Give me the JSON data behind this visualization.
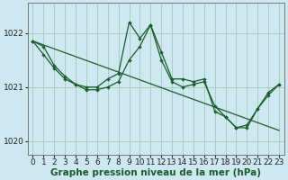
{
  "background_color": "#cde8f0",
  "grid_color": "#aacfba",
  "line_color": "#1a5c2a",
  "xlabel": "Graphe pression niveau de la mer (hPa)",
  "xlabel_fontsize": 7.5,
  "tick_fontsize": 6.5,
  "ylim": [
    1019.75,
    1022.55
  ],
  "yticks": [
    1020,
    1021,
    1022
  ],
  "xlim": [
    -0.5,
    23.5
  ],
  "xticks": [
    0,
    1,
    2,
    3,
    4,
    5,
    6,
    7,
    8,
    9,
    10,
    11,
    12,
    13,
    14,
    15,
    16,
    17,
    18,
    19,
    20,
    21,
    22,
    23
  ],
  "line_flat": [
    [
      0,
      1021.85
    ],
    [
      23,
      1020.2
    ]
  ],
  "line_main": [
    [
      0,
      1021.85
    ],
    [
      1,
      1021.75
    ],
    [
      2,
      1021.4
    ],
    [
      3,
      1021.2
    ],
    [
      4,
      1021.05
    ],
    [
      5,
      1021.0
    ],
    [
      6,
      1021.0
    ],
    [
      7,
      1021.15
    ],
    [
      8,
      1021.25
    ],
    [
      9,
      1022.2
    ],
    [
      10,
      1021.9
    ],
    [
      11,
      1022.15
    ],
    [
      12,
      1021.65
    ],
    [
      13,
      1021.15
    ],
    [
      14,
      1021.15
    ],
    [
      15,
      1021.1
    ],
    [
      16,
      1021.15
    ],
    [
      17,
      1020.55
    ],
    [
      18,
      1020.45
    ],
    [
      19,
      1020.25
    ],
    [
      20,
      1020.3
    ],
    [
      21,
      1020.6
    ],
    [
      22,
      1020.9
    ],
    [
      23,
      1021.05
    ]
  ],
  "line_second": [
    [
      0,
      1021.85
    ],
    [
      1,
      1021.6
    ],
    [
      2,
      1021.35
    ],
    [
      3,
      1021.15
    ],
    [
      4,
      1021.05
    ],
    [
      5,
      1020.95
    ],
    [
      6,
      1020.95
    ],
    [
      7,
      1021.0
    ],
    [
      8,
      1021.1
    ],
    [
      9,
      1021.5
    ],
    [
      10,
      1021.75
    ],
    [
      11,
      1022.15
    ],
    [
      12,
      1021.5
    ],
    [
      13,
      1021.1
    ],
    [
      14,
      1021.0
    ],
    [
      15,
      1021.05
    ],
    [
      16,
      1021.1
    ],
    [
      17,
      1020.65
    ],
    [
      18,
      1020.45
    ],
    [
      19,
      1020.25
    ],
    [
      20,
      1020.25
    ],
    [
      21,
      1020.6
    ],
    [
      22,
      1020.85
    ],
    [
      23,
      1021.05
    ]
  ]
}
